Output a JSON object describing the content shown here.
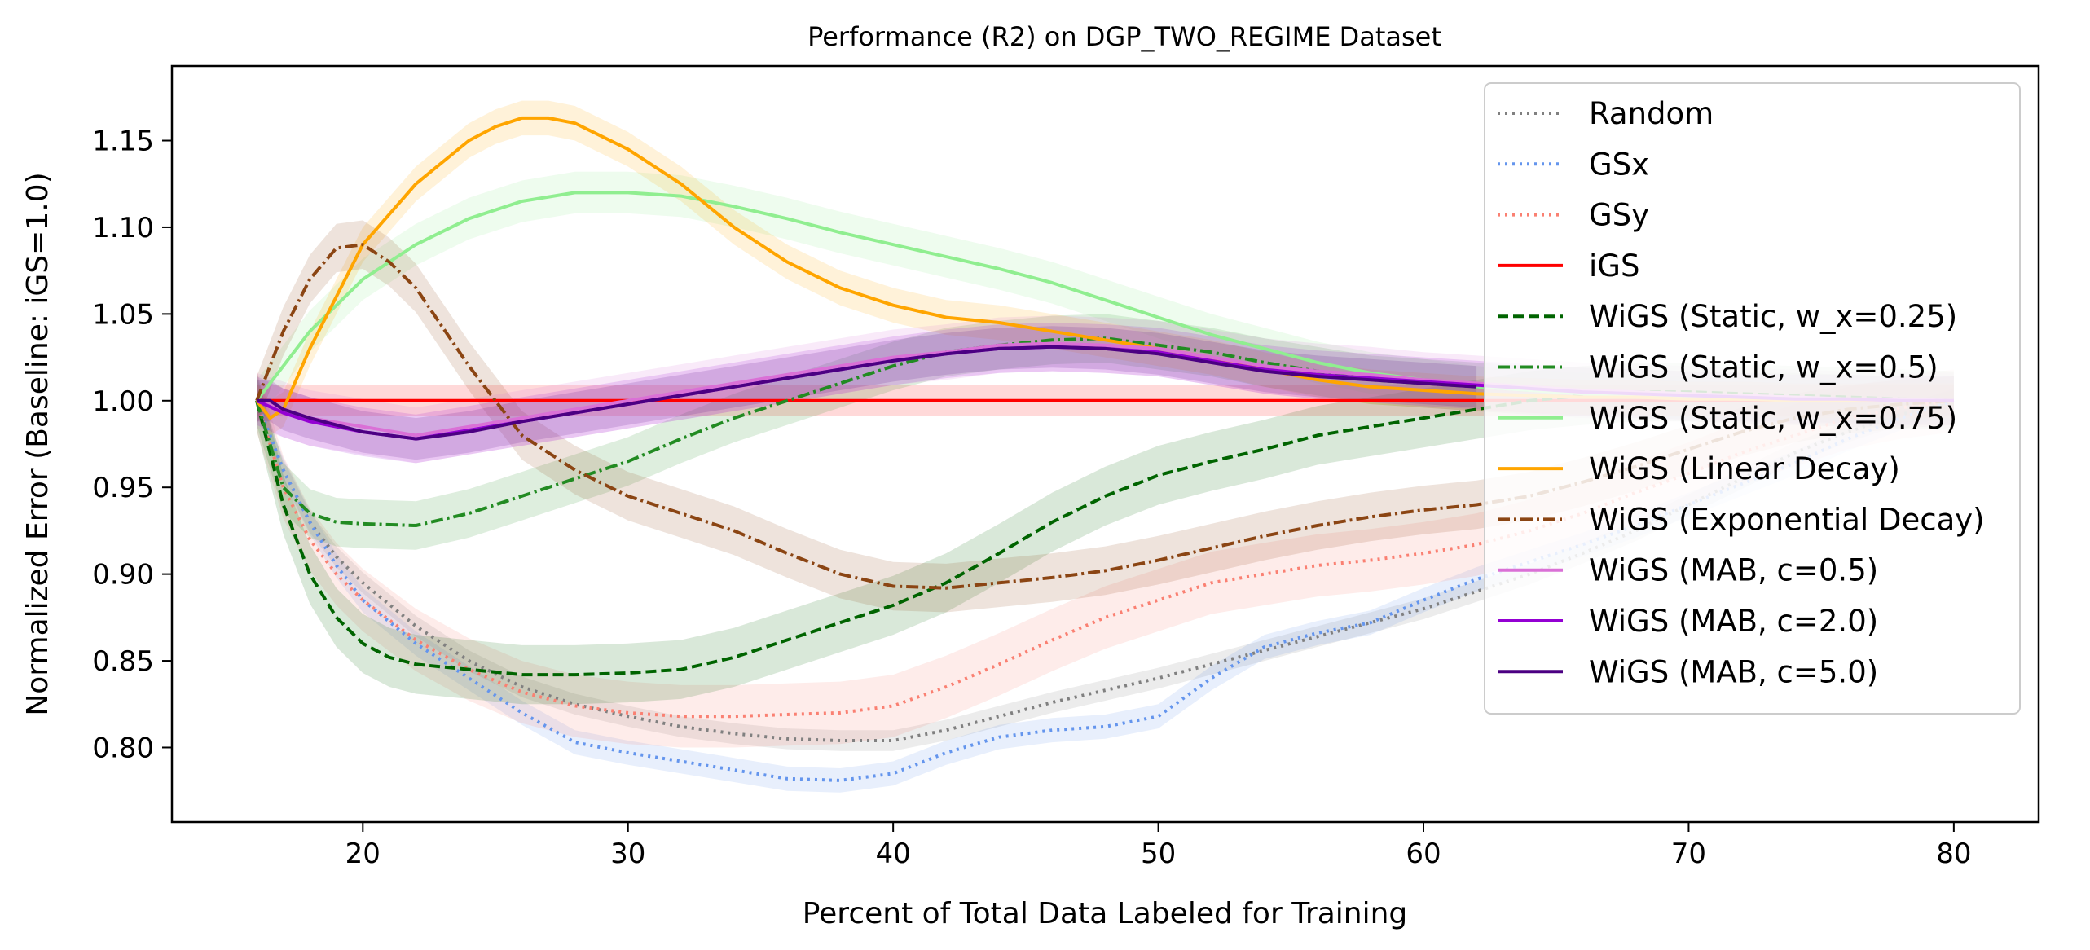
{
  "chart_data": {
    "type": "line",
    "title": "Performance (R2) on DGP_TWO_REGIME Dataset",
    "xlabel": "Percent of Total Data Labeled for Training",
    "ylabel": "Normalized Error (Baseline: iGS=1.0)",
    "xlim": [
      12.8,
      83.2
    ],
    "ylim": [
      0.757,
      1.193
    ],
    "xticks": [
      20,
      30,
      40,
      50,
      60,
      70,
      80
    ],
    "yticks": [
      0.8,
      0.85,
      0.9,
      0.95,
      1.0,
      1.05,
      1.1,
      1.15
    ],
    "ytick_labels": [
      "0.80",
      "0.85",
      "0.90",
      "0.95",
      "1.00",
      "1.05",
      "1.10",
      "1.15"
    ],
    "grid": false,
    "legend_position": "upper right",
    "series": [
      {
        "name": "Random",
        "color": "#808080",
        "style": "dotted",
        "band": 0.006,
        "x": [
          16,
          17,
          18,
          19,
          20,
          22,
          24,
          26,
          28,
          30,
          32,
          34,
          36,
          38,
          40,
          42,
          44,
          46,
          48,
          50,
          52,
          54,
          56,
          58,
          60,
          62,
          64,
          66,
          68,
          70,
          72,
          74,
          76,
          78,
          80
        ],
        "y": [
          1.0,
          0.96,
          0.93,
          0.91,
          0.895,
          0.87,
          0.85,
          0.835,
          0.825,
          0.818,
          0.812,
          0.808,
          0.805,
          0.804,
          0.804,
          0.81,
          0.818,
          0.826,
          0.833,
          0.84,
          0.848,
          0.856,
          0.864,
          0.872,
          0.88,
          0.89,
          0.9,
          0.912,
          0.925,
          0.94,
          0.955,
          0.97,
          0.982,
          0.992,
          1.0
        ]
      },
      {
        "name": "GSx",
        "color": "#6495ed",
        "style": "dotted",
        "band": 0.007,
        "x": [
          16,
          17,
          18,
          19,
          20,
          22,
          24,
          26,
          28,
          30,
          32,
          34,
          36,
          38,
          40,
          42,
          44,
          46,
          48,
          50,
          52,
          54,
          56,
          58,
          60,
          62,
          64,
          66,
          68,
          70,
          72,
          74,
          76,
          78,
          80
        ],
        "y": [
          1.0,
          0.96,
          0.93,
          0.905,
          0.885,
          0.86,
          0.84,
          0.82,
          0.803,
          0.797,
          0.792,
          0.787,
          0.782,
          0.781,
          0.785,
          0.797,
          0.806,
          0.81,
          0.812,
          0.818,
          0.84,
          0.858,
          0.866,
          0.872,
          0.885,
          0.897,
          0.907,
          0.917,
          0.928,
          0.94,
          0.952,
          0.964,
          0.978,
          0.99,
          1.0
        ]
      },
      {
        "name": "GSy",
        "color": "#fa8072",
        "style": "dotted",
        "band": 0.018,
        "x": [
          16,
          17,
          18,
          19,
          20,
          22,
          24,
          26,
          28,
          30,
          32,
          34,
          36,
          38,
          40,
          42,
          44,
          46,
          48,
          50,
          52,
          54,
          56,
          58,
          60,
          62,
          64,
          66,
          68,
          70,
          72,
          74,
          76,
          78,
          80
        ],
        "y": [
          1.0,
          0.95,
          0.92,
          0.9,
          0.885,
          0.862,
          0.845,
          0.832,
          0.824,
          0.82,
          0.818,
          0.818,
          0.819,
          0.82,
          0.824,
          0.835,
          0.848,
          0.862,
          0.875,
          0.885,
          0.895,
          0.9,
          0.905,
          0.908,
          0.912,
          0.917,
          0.925,
          0.935,
          0.947,
          0.958,
          0.97,
          0.98,
          0.99,
          0.996,
          1.0
        ]
      },
      {
        "name": "iGS",
        "color": "#ff0000",
        "style": "solid",
        "band": 0.009,
        "x": [
          16,
          80
        ],
        "y": [
          1.0,
          1.0
        ]
      },
      {
        "name": "WiGS (Static, w_x=0.25)",
        "color": "#006400",
        "style": "dashed",
        "band": 0.017,
        "x": [
          16,
          17,
          18,
          19,
          20,
          21,
          22,
          24,
          26,
          28,
          30,
          32,
          34,
          36,
          38,
          40,
          42,
          44,
          46,
          48,
          50,
          52,
          54,
          56,
          58,
          60,
          62,
          64,
          66,
          68,
          70,
          72,
          74,
          76,
          78,
          80
        ],
        "y": [
          1.0,
          0.94,
          0.9,
          0.875,
          0.86,
          0.852,
          0.848,
          0.845,
          0.842,
          0.842,
          0.843,
          0.845,
          0.852,
          0.862,
          0.872,
          0.882,
          0.895,
          0.912,
          0.93,
          0.945,
          0.957,
          0.965,
          0.972,
          0.98,
          0.985,
          0.99,
          0.995,
          1.0,
          1.003,
          1.005,
          1.005,
          1.004,
          1.003,
          1.002,
          1.001,
          1.0
        ]
      },
      {
        "name": "WiGS (Static, w_x=0.5)",
        "color": "#228b22",
        "style": "dashdot",
        "band": 0.014,
        "x": [
          16,
          17,
          18,
          19,
          20,
          22,
          24,
          26,
          28,
          30,
          32,
          34,
          36,
          38,
          40,
          42,
          44,
          46,
          48,
          50,
          52,
          54,
          56,
          58,
          60,
          62,
          64,
          66,
          68,
          70,
          72,
          74,
          76,
          78,
          80
        ],
        "y": [
          1.0,
          0.95,
          0.935,
          0.93,
          0.929,
          0.928,
          0.935,
          0.945,
          0.955,
          0.965,
          0.978,
          0.99,
          1.0,
          1.01,
          1.02,
          1.028,
          1.032,
          1.035,
          1.036,
          1.032,
          1.028,
          1.022,
          1.017,
          1.012,
          1.01,
          1.008,
          1.006,
          1.005,
          1.004,
          1.003,
          1.002,
          1.002,
          1.001,
          1.0,
          1.0
        ]
      },
      {
        "name": "WiGS (Static, w_x=0.75)",
        "color": "#90ee90",
        "style": "solid",
        "band": 0.012,
        "x": [
          16,
          17,
          18,
          20,
          22,
          24,
          26,
          28,
          30,
          32,
          34,
          36,
          38,
          40,
          42,
          44,
          46,
          48,
          50,
          52,
          54,
          56,
          58,
          60,
          62,
          64,
          66,
          68,
          70,
          72,
          74,
          76,
          78,
          80
        ],
        "y": [
          1.0,
          1.02,
          1.04,
          1.07,
          1.09,
          1.105,
          1.115,
          1.12,
          1.12,
          1.118,
          1.112,
          1.105,
          1.097,
          1.09,
          1.083,
          1.076,
          1.068,
          1.058,
          1.048,
          1.038,
          1.03,
          1.022,
          1.016,
          1.012,
          1.008,
          1.006,
          1.004,
          1.003,
          1.002,
          1.001,
          1.001,
          1.0,
          1.0,
          1.0
        ]
      },
      {
        "name": "WiGS (Linear Decay)",
        "color": "#ffa500",
        "style": "solid",
        "band": 0.01,
        "x": [
          16,
          16.5,
          17,
          18,
          19,
          20,
          22,
          24,
          25,
          26,
          27,
          28,
          30,
          32,
          34,
          36,
          38,
          40,
          42,
          44,
          46,
          48,
          50,
          52,
          54,
          56,
          58,
          60,
          62,
          64,
          66,
          68,
          70,
          72,
          74,
          76,
          78,
          80
        ],
        "y": [
          1.0,
          0.99,
          0.995,
          1.03,
          1.06,
          1.09,
          1.125,
          1.15,
          1.158,
          1.163,
          1.163,
          1.16,
          1.145,
          1.125,
          1.1,
          1.08,
          1.065,
          1.055,
          1.048,
          1.045,
          1.04,
          1.035,
          1.03,
          1.025,
          1.018,
          1.012,
          1.008,
          1.006,
          1.004,
          1.003,
          1.002,
          1.002,
          1.001,
          1.001,
          1.0,
          1.0,
          1.0,
          1.0
        ]
      },
      {
        "name": "WiGS (Exponential Decay)",
        "color": "#8b4513",
        "style": "dashdot",
        "band": 0.014,
        "x": [
          16,
          17,
          18,
          19,
          20,
          21,
          22,
          24,
          26,
          28,
          30,
          32,
          34,
          36,
          38,
          40,
          42,
          44,
          46,
          48,
          50,
          52,
          54,
          56,
          58,
          60,
          62,
          64,
          66,
          68,
          70,
          72,
          74,
          76,
          78,
          80
        ],
        "y": [
          1.0,
          1.04,
          1.07,
          1.088,
          1.09,
          1.08,
          1.065,
          1.02,
          0.98,
          0.96,
          0.945,
          0.935,
          0.925,
          0.912,
          0.9,
          0.893,
          0.892,
          0.895,
          0.898,
          0.902,
          0.908,
          0.915,
          0.922,
          0.928,
          0.933,
          0.937,
          0.94,
          0.945,
          0.953,
          0.962,
          0.972,
          0.982,
          0.99,
          0.995,
          0.998,
          1.0
        ]
      },
      {
        "name": "WiGS (MAB, c=0.5)",
        "color": "#da70d6",
        "style": "solid",
        "band": 0.016,
        "x": [
          16,
          17,
          18,
          20,
          22,
          24,
          26,
          28,
          30,
          32,
          34,
          36,
          38,
          40,
          42,
          44,
          46,
          48,
          50,
          52,
          54,
          56,
          58,
          60,
          62,
          64,
          66,
          68,
          70,
          72,
          74,
          76,
          78,
          80
        ],
        "y": [
          1.0,
          0.995,
          0.99,
          0.985,
          0.98,
          0.985,
          0.99,
          0.995,
          1.0,
          1.005,
          1.01,
          1.015,
          1.02,
          1.025,
          1.028,
          1.032,
          1.033,
          1.032,
          1.03,
          1.025,
          1.02,
          1.017,
          1.015,
          1.012,
          1.01,
          1.008,
          1.006,
          1.005,
          1.004,
          1.003,
          1.002,
          1.001,
          1.001,
          1.0
        ]
      },
      {
        "name": "WiGS (MAB, c=2.0)",
        "color": "#9400d3",
        "style": "solid",
        "band": 0.014,
        "x": [
          16,
          17,
          18,
          20,
          22,
          24,
          26,
          28,
          30,
          32,
          34,
          36,
          38,
          40,
          42,
          44,
          46,
          48,
          50,
          52,
          54,
          56,
          58,
          60,
          62,
          64,
          66,
          68,
          70,
          72,
          74,
          76,
          78,
          80
        ],
        "y": [
          1.0,
          0.993,
          0.988,
          0.982,
          0.978,
          0.983,
          0.988,
          0.993,
          0.998,
          1.003,
          1.008,
          1.013,
          1.018,
          1.023,
          1.027,
          1.03,
          1.031,
          1.03,
          1.028,
          1.023,
          1.018,
          1.015,
          1.013,
          1.011,
          1.009,
          1.007,
          1.005,
          1.004,
          1.003,
          1.002,
          1.001,
          1.001,
          1.0,
          1.0
        ]
      },
      {
        "name": "WiGS (MAB, c=5.0)",
        "color": "#4b0082",
        "style": "solid",
        "band": 0.012,
        "x": [
          16,
          16.5,
          17,
          18,
          20,
          22,
          24,
          26,
          28,
          30,
          32,
          34,
          36,
          38,
          40,
          42,
          44,
          46,
          48,
          50,
          52,
          54,
          56,
          58,
          60,
          62
        ],
        "y": [
          1.0,
          1.0,
          0.995,
          0.99,
          0.982,
          0.978,
          0.982,
          0.988,
          0.993,
          0.998,
          1.003,
          1.008,
          1.013,
          1.018,
          1.023,
          1.027,
          1.03,
          1.031,
          1.03,
          1.027,
          1.022,
          1.017,
          1.014,
          1.012,
          1.01,
          1.008
        ]
      }
    ]
  }
}
